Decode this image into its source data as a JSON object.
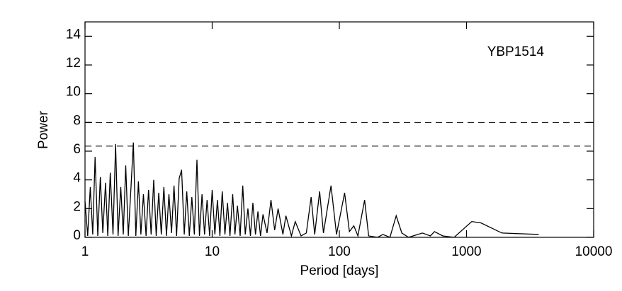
{
  "chart_data": {
    "type": "line",
    "annotation": "YBP1514",
    "xlabel": "Period [days]",
    "ylabel": "Power",
    "xlog": true,
    "xlim": [
      1,
      10000
    ],
    "xticks": [
      1,
      10,
      100,
      1000,
      10000
    ],
    "ylim": [
      0,
      15
    ],
    "yticks": [
      0,
      2,
      4,
      6,
      8,
      10,
      12,
      14
    ],
    "hlines": [
      8.0,
      6.35
    ],
    "color": "#000000",
    "x": [
      1.0,
      1.05,
      1.1,
      1.15,
      1.2,
      1.26,
      1.32,
      1.38,
      1.45,
      1.51,
      1.58,
      1.66,
      1.74,
      1.82,
      1.91,
      2.0,
      2.09,
      2.19,
      2.29,
      2.4,
      2.51,
      2.63,
      2.75,
      2.88,
      3.02,
      3.16,
      3.31,
      3.47,
      3.63,
      3.8,
      3.98,
      4.17,
      4.37,
      4.57,
      4.79,
      5.01,
      5.25,
      5.5,
      5.75,
      6.03,
      6.31,
      6.61,
      6.92,
      7.24,
      7.59,
      7.94,
      8.32,
      8.71,
      9.12,
      9.55,
      10.0,
      10.5,
      11.0,
      11.5,
      12.0,
      12.6,
      13.2,
      13.8,
      14.5,
      15.1,
      15.8,
      16.6,
      17.4,
      18.2,
      19.1,
      20.0,
      20.9,
      21.9,
      22.9,
      24.0,
      25.1,
      27,
      29,
      31,
      33,
      36,
      38,
      42,
      45,
      50,
      55,
      60,
      64,
      70,
      75,
      86,
      95,
      110,
      120,
      130,
      140,
      158,
      170,
      200,
      220,
      250,
      280,
      310,
      350,
      450,
      520,
      560,
      650,
      800,
      1100,
      1300,
      1900,
      3700
    ],
    "values": [
      2.5,
      0.1,
      3.5,
      0.2,
      5.6,
      0.1,
      4.2,
      0.3,
      3.8,
      0.1,
      4.5,
      0.2,
      6.5,
      0.1,
      3.5,
      0.2,
      5.0,
      0.1,
      3.2,
      6.6,
      0.1,
      3.9,
      0.2,
      3.0,
      0.1,
      3.3,
      0.2,
      4.0,
      0.1,
      3.1,
      0.2,
      3.5,
      0.1,
      3.0,
      0.3,
      3.6,
      0.1,
      4.1,
      4.7,
      0.2,
      3.2,
      0.1,
      2.8,
      0.2,
      5.4,
      0.1,
      3.0,
      0.2,
      2.6,
      0.1,
      3.3,
      0.2,
      2.6,
      0.1,
      3.2,
      0.2,
      2.4,
      0.1,
      3.0,
      0.2,
      2.2,
      0.1,
      3.6,
      0.2,
      2.0,
      0.1,
      2.4,
      0.2,
      1.8,
      0.1,
      1.6,
      0.3,
      2.6,
      0.5,
      2.0,
      0.2,
      1.5,
      0.1,
      1.1,
      0.1,
      0.3,
      2.8,
      0.2,
      3.2,
      0.3,
      3.6,
      0.2,
      3.1,
      0.4,
      0.8,
      0.1,
      2.6,
      0.1,
      0.0,
      0.2,
      0.0,
      1.5,
      0.3,
      0.0,
      0.3,
      0.1,
      0.4,
      0.1,
      0.0,
      1.1,
      1.0,
      0.3,
      0.2
    ]
  }
}
